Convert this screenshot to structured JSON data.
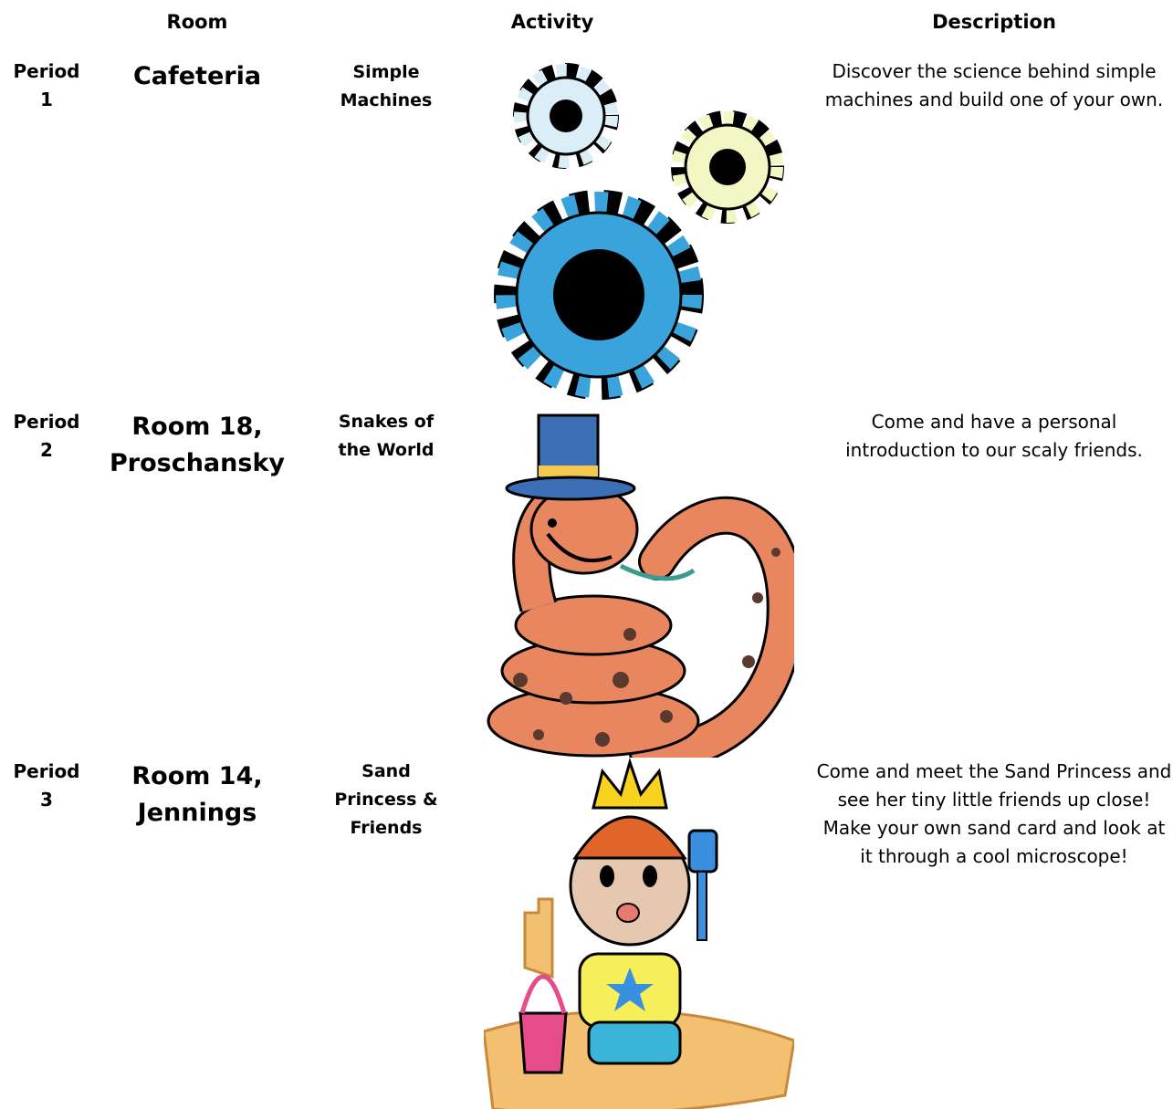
{
  "header": {
    "room": "Room",
    "activity": "Activity",
    "description": "Description"
  },
  "rows": [
    {
      "period": "Period 1",
      "room": "Cafeteria",
      "activity": "Simple Machines",
      "description": "Discover the science behind simple machines and build one of your own."
    },
    {
      "period": "Period 2",
      "room": "Room 18, Proschansky",
      "activity": "Snakes of the World",
      "description": "Come and have a personal introduction to our scaly friends."
    },
    {
      "period": "Period 3",
      "room": "Room 14, Jennings",
      "activity": "Sand Princess & Friends",
      "description": "Come and meet the Sand Princess and see her tiny little friends up close! Make your own sand card and look at it through a cool microscope!"
    }
  ]
}
